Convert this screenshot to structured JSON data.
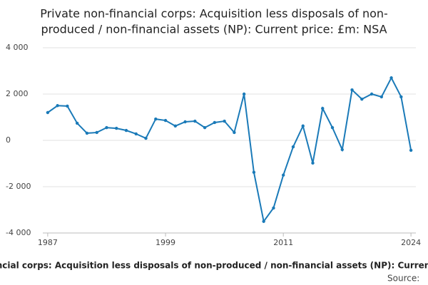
{
  "chart_data": {
    "type": "line",
    "title": [
      "Private non-financial corps: Acquisition less disposals of non-",
      "produced / non-financial assets (NP): Current price: £m: NSA"
    ],
    "x": [
      1987,
      1988,
      1989,
      1990,
      1991,
      1992,
      1993,
      1994,
      1995,
      1996,
      1997,
      1998,
      1999,
      2000,
      2001,
      2002,
      2003,
      2004,
      2005,
      2006,
      2007,
      2008,
      2009,
      2010,
      2011,
      2012,
      2013,
      2014,
      2015,
      2016,
      2017,
      2018,
      2019,
      2020,
      2021,
      2022,
      2023,
      2024
    ],
    "series": [
      {
        "name": "Private non-financial corps: Acquisition less disposals of non-produced / non-financial assets (NP): Current price: £m: NSA",
        "color": "#1a7ab8",
        "values": [
          1200,
          1500,
          1480,
          740,
          310,
          340,
          550,
          520,
          430,
          280,
          90,
          920,
          860,
          620,
          800,
          830,
          550,
          770,
          830,
          340,
          2000,
          -1380,
          -3500,
          -2920,
          -1500,
          -280,
          620,
          -980,
          1380,
          550,
          -400,
          2180,
          1780,
          2000,
          1880,
          2700,
          1880,
          -430
        ]
      }
    ],
    "xlim": [
      1986.5,
      2024.5
    ],
    "xticks": [
      1987,
      1999,
      2011,
      2024
    ],
    "ylim": [
      -4000,
      4000
    ],
    "yticks": [
      {
        "value": -4000,
        "label": "-4 000"
      },
      {
        "value": -2000,
        "label": "-2 000"
      },
      0,
      {
        "value": 2000,
        "label": "2 000"
      },
      {
        "value": 4000,
        "label": "4 000"
      }
    ],
    "grid": true,
    "source": "Source:"
  }
}
